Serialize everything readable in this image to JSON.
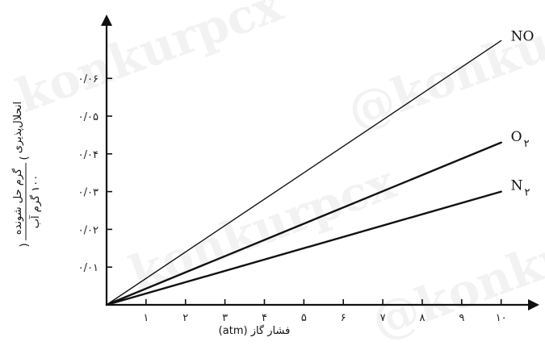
{
  "chart_data": {
    "type": "line",
    "x": [
      0,
      10
    ],
    "series": [
      {
        "name": "NO",
        "name_main": "NO",
        "name_sub": "",
        "values": [
          0,
          0.07
        ],
        "stroke": 1.4
      },
      {
        "name": "O۲",
        "name_main": "O",
        "name_sub": "۲",
        "values": [
          0,
          0.043
        ],
        "stroke": 2.4
      },
      {
        "name": "N۲",
        "name_main": "N",
        "name_sub": "۲",
        "values": [
          0,
          0.03
        ],
        "stroke": 2.4
      }
    ],
    "xlim": [
      0,
      10.6
    ],
    "ylim": [
      0,
      0.075
    ],
    "x_ticks": [
      1,
      2,
      3,
      4,
      5,
      6,
      7,
      8,
      9,
      10
    ],
    "x_tick_labels": [
      "۱",
      "۲",
      "۳",
      "۴",
      "۵",
      "۶",
      "۷",
      "۸",
      "۹",
      "۱۰"
    ],
    "y_ticks": [
      0.01,
      0.02,
      0.03,
      0.04,
      0.05,
      0.06
    ],
    "y_tick_labels": [
      "۰/۰۱",
      "۰/۰۲",
      "۰/۰۳",
      "۰/۰۴",
      "۰/۰۵",
      "۰/۰۶"
    ],
    "xlabel": "فشار گاز (atm)",
    "ylabel": "انحلال‌پذیری",
    "ylabel_fraction_numerator": "گرم حل شونده",
    "ylabel_fraction_denominator": "۱۰۰ گرم آب",
    "grid": false,
    "legend": "none",
    "line_color": "#111111"
  },
  "watermarks": [
    "konkurpcx",
    "@konkurpcx",
    "konkurpcx",
    "@konkurpcx"
  ]
}
